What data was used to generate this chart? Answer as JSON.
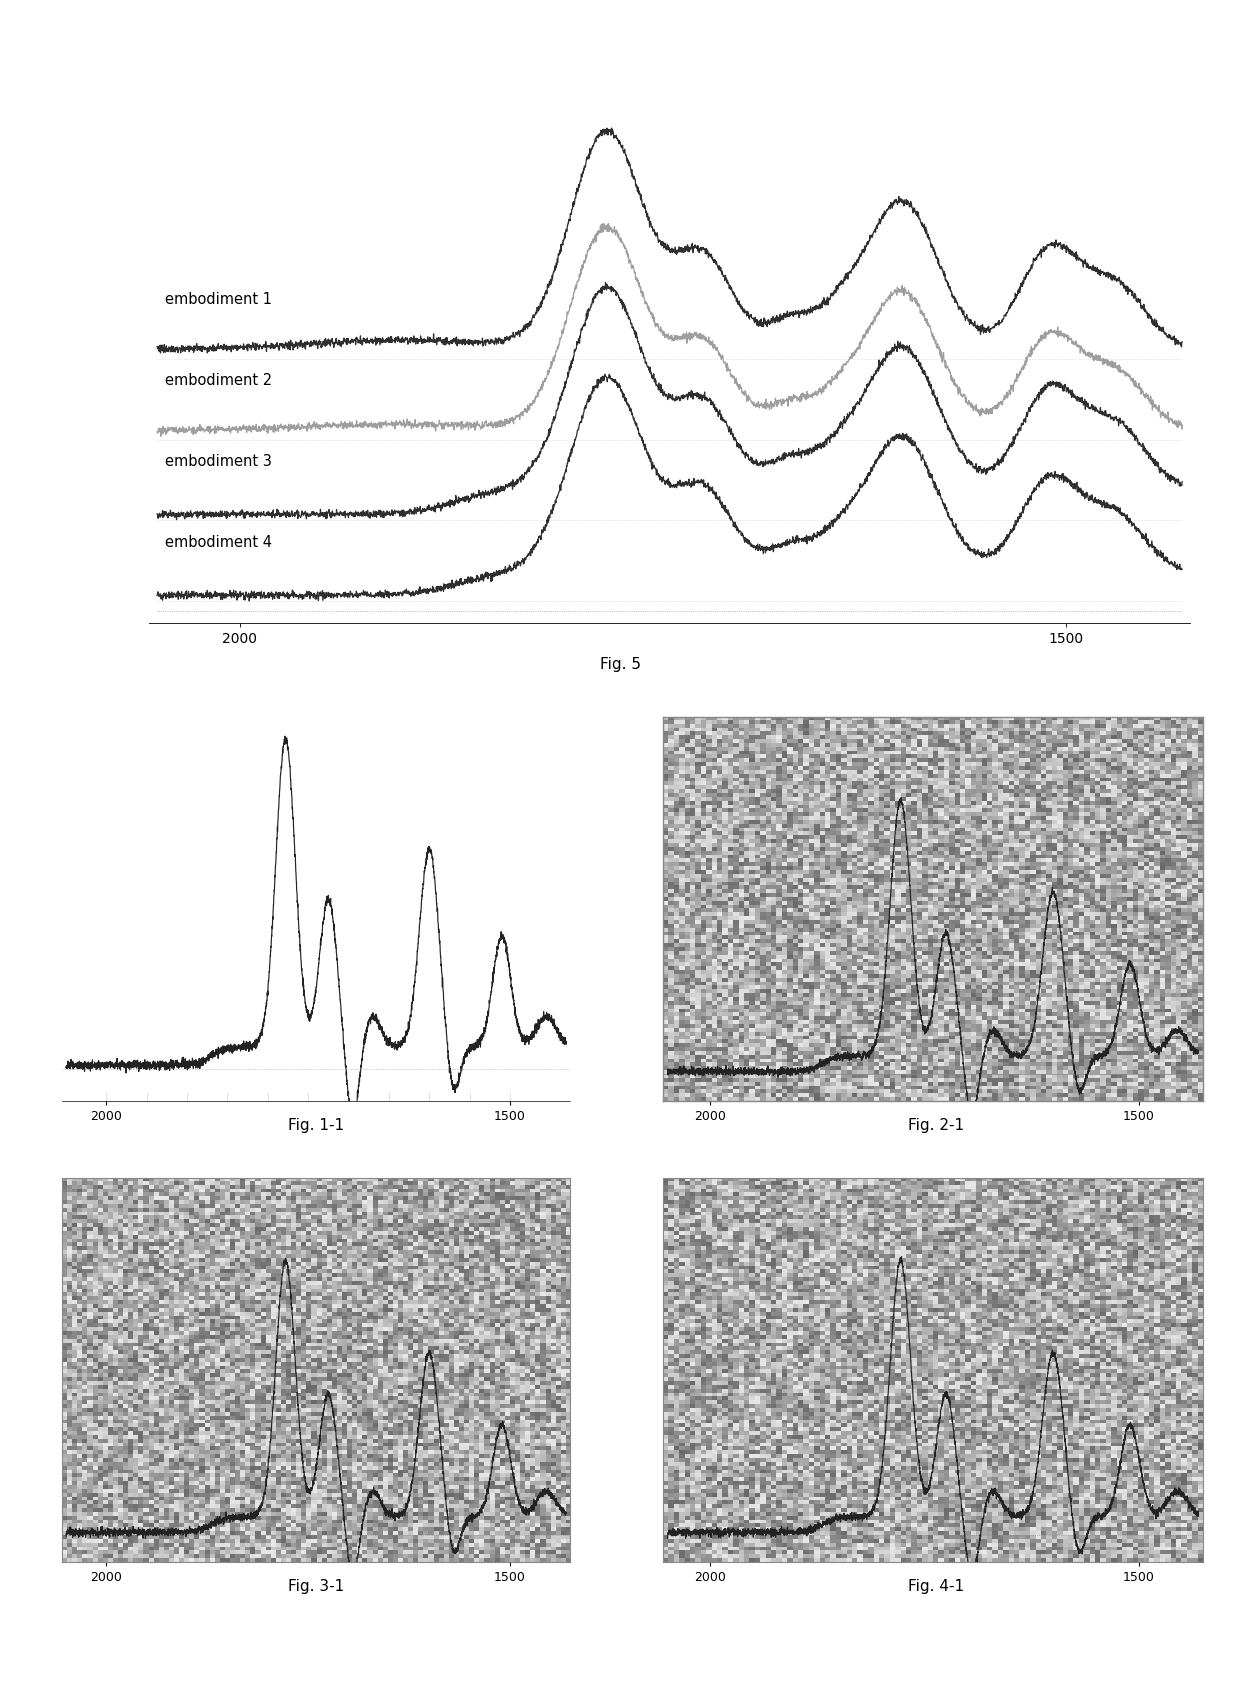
{
  "fig5_title": "Fig. 5",
  "fig11_title": "Fig. 1-1",
  "fig21_title": "Fig. 2-1",
  "fig31_title": "Fig. 3-1",
  "fig41_title": "Fig. 4-1",
  "embodiment_labels": [
    "embodiment 1",
    "embodiment 2",
    "embodiment 3",
    "embodiment 4"
  ],
  "embodiment2_color": "#999999",
  "main_color": "#222222",
  "background_color": "#ffffff",
  "gray_bg": "#cccccc",
  "stipple_color": "#bbbbbb"
}
